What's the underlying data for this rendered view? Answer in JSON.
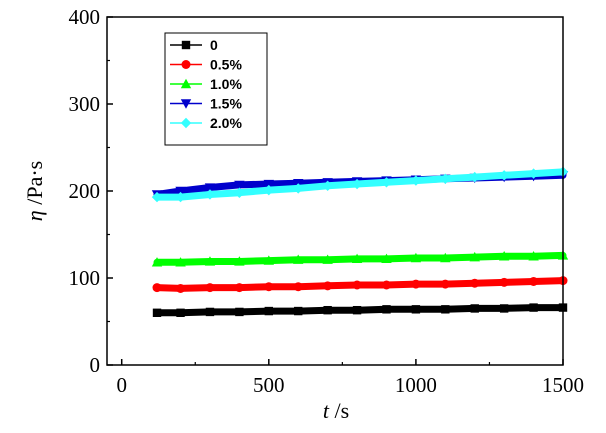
{
  "chart_data": {
    "type": "line",
    "xlabel_var": "t",
    "xlabel_unit": " /s",
    "ylabel_var": "η",
    "ylabel_unit": " /Pa·s",
    "xlim": [
      -50,
      1500
    ],
    "ylim": [
      0,
      400
    ],
    "x_ticks": [
      0,
      500,
      1000,
      1500
    ],
    "y_ticks": [
      0,
      100,
      200,
      300,
      400
    ],
    "grid": false,
    "legend_position": "top-left",
    "x": [
      120,
      200,
      300,
      400,
      500,
      600,
      700,
      800,
      900,
      1000,
      1100,
      1200,
      1300,
      1400,
      1500
    ],
    "series": [
      {
        "name": "0",
        "color": "#000000",
        "marker": "square",
        "values": [
          60,
          60,
          61,
          61,
          62,
          62,
          63,
          63,
          64,
          64,
          64,
          65,
          65,
          66,
          66
        ]
      },
      {
        "name": "0.5%",
        "color": "#ff0000",
        "marker": "circle",
        "values": [
          89,
          88,
          89,
          89,
          90,
          90,
          91,
          92,
          92,
          93,
          93,
          94,
          95,
          96,
          97
        ]
      },
      {
        "name": "1.0%",
        "color": "#00ff00",
        "marker": "triangle-up",
        "values": [
          118,
          118,
          119,
          119,
          120,
          121,
          121,
          122,
          122,
          123,
          123,
          124,
          125,
          125,
          126
        ]
      },
      {
        "name": "1.5%",
        "color": "#0000cc",
        "marker": "triangle-down",
        "values": [
          196,
          200,
          204,
          207,
          208,
          209,
          210,
          211,
          212,
          213,
          214,
          215,
          216,
          217,
          218
        ]
      },
      {
        "name": "2.0%",
        "color": "#33ffff",
        "marker": "diamond",
        "values": [
          193,
          193,
          196,
          198,
          201,
          203,
          206,
          208,
          210,
          212,
          214,
          216,
          218,
          220,
          222
        ]
      }
    ]
  }
}
